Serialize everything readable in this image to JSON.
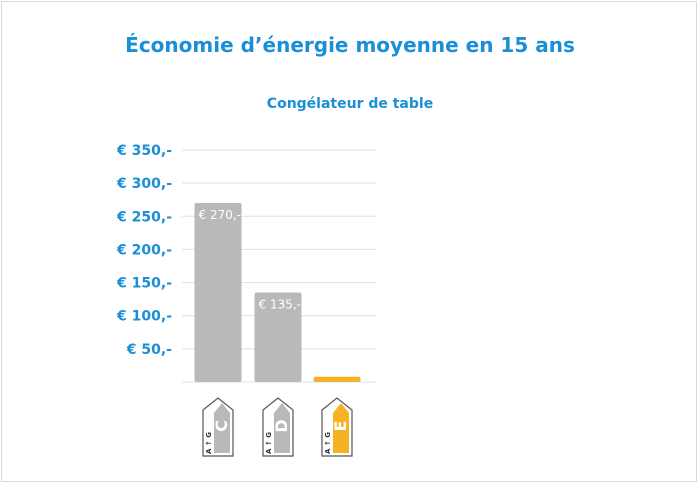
{
  "chart_data": {
    "type": "bar",
    "title": "Économie d’énergie moyenne en 15 ans",
    "subtitle": "Congélateur de table",
    "categories": [
      "C",
      "D",
      "E"
    ],
    "values": [
      270,
      135,
      8
    ],
    "data_labels": [
      "€ 270,-",
      "€ 135,-",
      ""
    ],
    "bar_colors": [
      "#b9b9b9",
      "#b9b9b9",
      "#f5b324"
    ],
    "ylim": [
      0,
      350
    ],
    "yticks": [
      {
        "value": 50,
        "label": "€ 50,-"
      },
      {
        "value": 100,
        "label": "€ 100,-"
      },
      {
        "value": 150,
        "label": "€ 150,-"
      },
      {
        "value": 200,
        "label": "€ 200,-"
      },
      {
        "value": 250,
        "label": "€ 250,-"
      },
      {
        "value": 300,
        "label": "€ 300,-"
      },
      {
        "value": 350,
        "label": "€ 350,-"
      }
    ],
    "grid": true,
    "energy_labels": [
      {
        "class": "C",
        "scale": "A G",
        "color": "#b9b9b9"
      },
      {
        "class": "D",
        "scale": "A G",
        "color": "#b9b9b9"
      },
      {
        "class": "E",
        "scale": "A G",
        "color": "#f5b324"
      }
    ]
  },
  "colors": {
    "accent": "#1a8fd6",
    "gridline": "#cfe6f5"
  }
}
